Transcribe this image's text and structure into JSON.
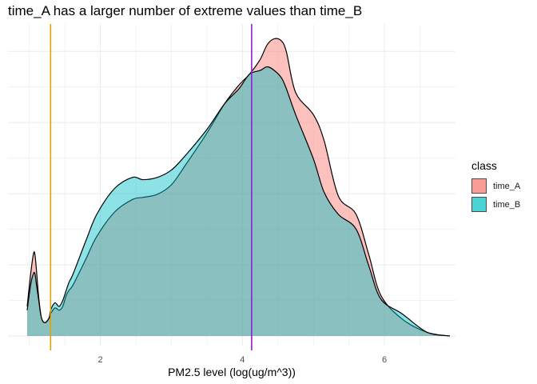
{
  "chart_data": {
    "type": "area",
    "title": "time_A has a larger number of extreme values than time_B",
    "xlabel": "PM2.5 level (log(ug/m^3))",
    "ylabel": "",
    "xlim": [
      0.7,
      7.0
    ],
    "ylim": [
      0,
      0.41
    ],
    "x_ticks": [
      2,
      4,
      6
    ],
    "grid": true,
    "legend": {
      "title": "class",
      "position": "right"
    },
    "vlines": [
      {
        "x": 1.3,
        "color": "#E69F00"
      },
      {
        "x": 4.13,
        "color": "#8B1FD4"
      }
    ],
    "series": [
      {
        "name": "time_A",
        "color": "#F8766D",
        "x": [
          0.97,
          1.02,
          1.06,
          1.08,
          1.1,
          1.13,
          1.17,
          1.22,
          1.28,
          1.3,
          1.36,
          1.42,
          1.47,
          1.52,
          1.56,
          1.62,
          1.8,
          1.95,
          2.2,
          2.45,
          2.6,
          2.8,
          3.0,
          3.2,
          3.5,
          3.75,
          3.95,
          4.1,
          4.25,
          4.35,
          4.45,
          4.55,
          4.62,
          4.75,
          5.0,
          5.15,
          5.35,
          5.6,
          5.78,
          5.95,
          6.25,
          6.6,
          6.92
        ],
        "y": [
          0.04,
          0.085,
          0.112,
          0.11,
          0.09,
          0.055,
          0.025,
          0.018,
          0.024,
          0.03,
          0.038,
          0.035,
          0.04,
          0.055,
          0.062,
          0.07,
          0.105,
          0.135,
          0.168,
          0.185,
          0.188,
          0.192,
          0.205,
          0.232,
          0.275,
          0.315,
          0.34,
          0.355,
          0.375,
          0.395,
          0.403,
          0.4,
          0.385,
          0.33,
          0.3,
          0.265,
          0.19,
          0.165,
          0.11,
          0.055,
          0.023,
          0.005,
          0.0
        ]
      },
      {
        "name": "time_B",
        "color": "#00BFC4",
        "x": [
          0.97,
          1.02,
          1.06,
          1.08,
          1.1,
          1.13,
          1.17,
          1.22,
          1.28,
          1.3,
          1.36,
          1.42,
          1.47,
          1.52,
          1.56,
          1.62,
          1.8,
          1.95,
          2.2,
          2.45,
          2.6,
          2.8,
          3.0,
          3.2,
          3.5,
          3.75,
          3.95,
          4.1,
          4.25,
          4.35,
          4.45,
          4.55,
          4.62,
          4.75,
          5.0,
          5.15,
          5.35,
          5.6,
          5.78,
          5.95,
          6.25,
          6.6,
          6.92
        ],
        "y": [
          0.035,
          0.07,
          0.085,
          0.084,
          0.07,
          0.05,
          0.025,
          0.018,
          0.025,
          0.035,
          0.045,
          0.04,
          0.048,
          0.062,
          0.073,
          0.085,
          0.13,
          0.165,
          0.2,
          0.215,
          0.212,
          0.215,
          0.225,
          0.245,
          0.28,
          0.315,
          0.335,
          0.355,
          0.36,
          0.365,
          0.36,
          0.35,
          0.335,
          0.3,
          0.24,
          0.195,
          0.165,
          0.145,
          0.095,
          0.05,
          0.03,
          0.005,
          0.0
        ]
      }
    ]
  }
}
